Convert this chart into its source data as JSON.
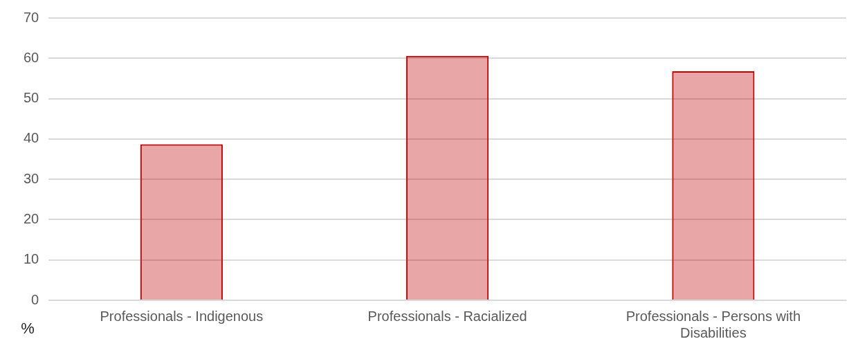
{
  "chart_data": {
    "type": "bar",
    "ylabel": "%",
    "categories": [
      "Professionals - Indigenous",
      "Professionals - Racialized",
      "Professionals - Persons with Disabilities"
    ],
    "values": [
      38.7,
      60.6,
      56.8
    ],
    "color": "#c00000",
    "ylim": [
      0,
      70
    ],
    "yticks": [
      0,
      10,
      20,
      30,
      40,
      50,
      60,
      70
    ],
    "grid": "y",
    "legend": false
  }
}
